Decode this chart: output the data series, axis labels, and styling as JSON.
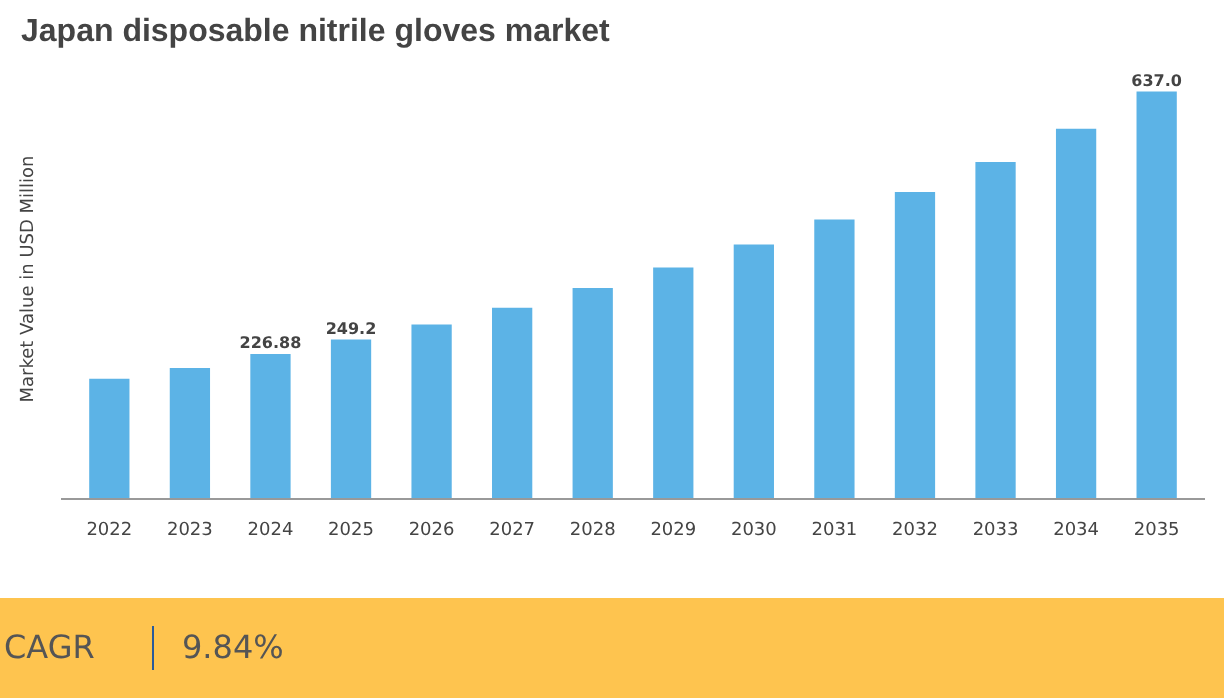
{
  "chart_data": {
    "type": "bar",
    "title": "Japan disposable nitrile gloves market",
    "ylabel": "Market Value in USD Million",
    "categories": [
      "2022",
      "2023",
      "2024",
      "2025",
      "2026",
      "2027",
      "2028",
      "2029",
      "2030",
      "2031",
      "2032",
      "2033",
      "2034",
      "2035"
    ],
    "values": [
      188,
      205,
      226.88,
      249.2,
      273,
      299,
      330,
      362,
      398,
      437,
      480,
      527,
      579,
      637.0
    ],
    "value_labels": [
      null,
      null,
      "226.88",
      "249.2",
      null,
      null,
      null,
      null,
      null,
      null,
      null,
      null,
      null,
      "637.0"
    ],
    "color": "#5cb3e6",
    "grid": false,
    "annotations": [
      "CAGR",
      "9.84%"
    ]
  }
}
